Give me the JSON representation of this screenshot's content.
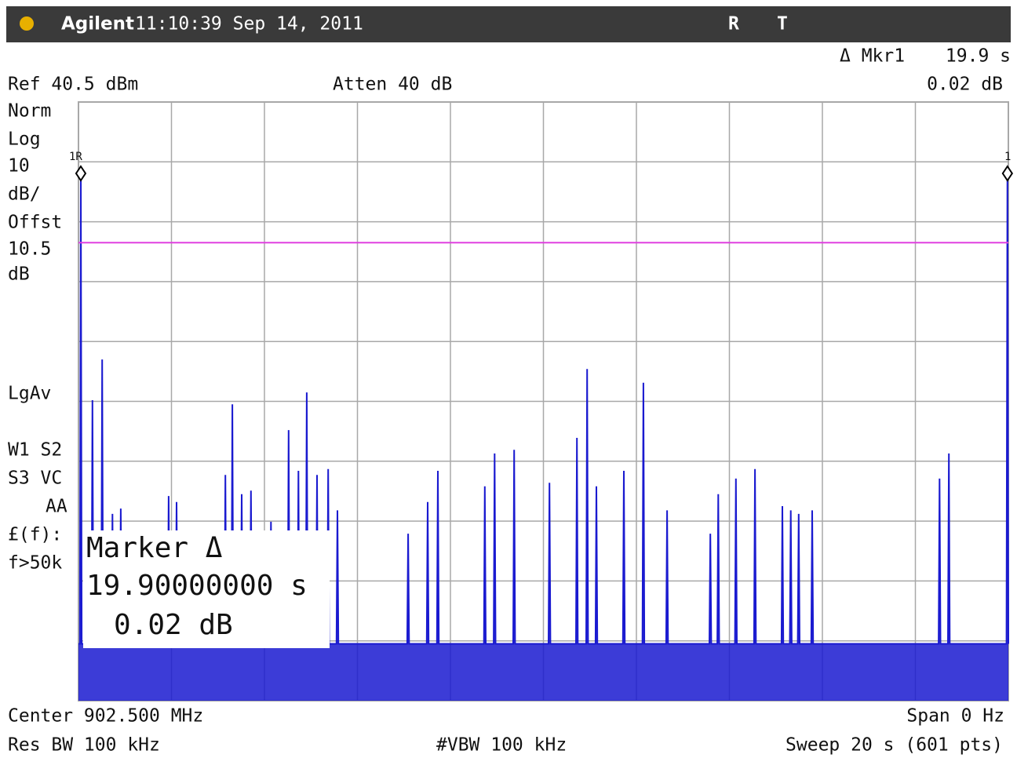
{
  "header": {
    "brand": "Agilent",
    "datetime": "11:10:39  Sep 14, 2011",
    "flag_r": "R",
    "flag_t": "T"
  },
  "top": {
    "marker_label": "Δ Mkr1",
    "marker_x": "19.9 s",
    "ref": "Ref 40.5 dBm",
    "atten": "Atten 40 dB",
    "marker_y": "0.02 dB"
  },
  "left": [
    "Norm",
    "Log",
    "10",
    "dB/",
    "Offst",
    "10.5",
    "dB",
    "LgAv",
    "W1  S2",
    "S3  VC",
    "AA",
    "£(f):",
    "f>50k"
  ],
  "marker_box": {
    "title": "Marker Δ",
    "time": "19.90000000  s",
    "level": "0.02 dB"
  },
  "markers": {
    "ref_marker": "1R",
    "delta_marker": "1"
  },
  "bottom": {
    "center": "Center 902.500 MHz",
    "span": "Span 0 Hz",
    "rbw": "Res BW 100 kHz",
    "vbw": "#VBW 100 kHz",
    "sweep": "Sweep 20 s (601 pts)"
  },
  "chart_data": {
    "type": "line",
    "color": "#1a1ad0",
    "xlim": [
      0,
      20
    ],
    "ylim": [
      -59.5,
      40.5
    ],
    "display_line": 17,
    "display_line_color": "#e040e0",
    "x": [
      0,
      0.03,
      0.05,
      0.07,
      0.28,
      0.3,
      0.32,
      0.49,
      0.51,
      0.53,
      0.71,
      0.73,
      0.75,
      0.89,
      0.91,
      0.93,
      1.92,
      1.94,
      1.96,
      2.09,
      2.11,
      2.13,
      3.14,
      3.16,
      3.18,
      3.29,
      3.31,
      3.33,
      3.49,
      3.51,
      3.53,
      3.69,
      3.71,
      3.73,
      4.12,
      4.14,
      4.16,
      4.5,
      4.52,
      4.54,
      4.71,
      4.73,
      4.75,
      4.89,
      4.91,
      4.93,
      5.11,
      5.13,
      5.15,
      5.35,
      5.37,
      5.39,
      5.55,
      5.57,
      5.59,
      7.07,
      7.09,
      7.11,
      7.49,
      7.51,
      7.53,
      7.71,
      7.73,
      7.75,
      8.72,
      8.74,
      8.76,
      8.93,
      8.95,
      8.97,
      9.35,
      9.37,
      9.39,
      10.11,
      10.13,
      10.15,
      10.7,
      10.72,
      10.74,
      10.92,
      10.94,
      10.96,
      11.12,
      11.14,
      11.16,
      11.71,
      11.73,
      11.75,
      12.13,
      12.15,
      12.17,
      12.64,
      12.66,
      12.68,
      13.57,
      13.59,
      13.61,
      13.74,
      13.76,
      13.78,
      14.12,
      14.14,
      14.16,
      14.53,
      14.55,
      14.57,
      15.12,
      15.14,
      15.16,
      15.3,
      15.32,
      15.34,
      15.47,
      15.49,
      15.51,
      15.76,
      15.78,
      15.8,
      18.5,
      18.52,
      18.54,
      18.7,
      18.72,
      18.74,
      19.96,
      19.98,
      20.0
    ],
    "values": [
      -50,
      -50,
      29.4,
      -50,
      -50,
      -9.3,
      -50,
      -50,
      -2.5,
      -50,
      -50,
      -28.3,
      -50,
      -50,
      -27.4,
      -50,
      -50,
      -25.3,
      -50,
      -50,
      -26.3,
      -50,
      -50,
      -21.8,
      -50,
      -50,
      -10.0,
      -50,
      -50,
      -25.0,
      -50,
      -50,
      -24.4,
      -50,
      -50,
      -29.6,
      -50,
      -50,
      -14.3,
      -50,
      -50,
      -21.1,
      -50,
      -50,
      -8.0,
      -50,
      -50,
      -21.8,
      -50,
      -50,
      -20.8,
      -50,
      -50,
      -27.7,
      -50,
      -50,
      -31.6,
      -50,
      -50,
      -26.3,
      -50,
      -50,
      -21.1,
      -50,
      -50,
      -23.7,
      -50,
      -50,
      -18.2,
      -50,
      -50,
      -17.6,
      -50,
      -50,
      -23.1,
      -50,
      -50,
      -15.6,
      -50,
      -50,
      -4.1,
      -50,
      -50,
      -23.7,
      -50,
      -50,
      -21.1,
      -50,
      -50,
      -6.4,
      -50,
      -50,
      -27.7,
      -50,
      -50,
      -31.6,
      -50,
      -50,
      -25.0,
      -50,
      -50,
      -22.4,
      -50,
      -50,
      -20.8,
      -50,
      -50,
      -27.0,
      -50,
      -50,
      -27.7,
      -50,
      -50,
      -28.3,
      -50,
      -50,
      -27.7,
      -50,
      -50,
      -22.4,
      -50,
      -50,
      -18.2,
      -50,
      -50,
      29.4,
      -50
    ]
  }
}
